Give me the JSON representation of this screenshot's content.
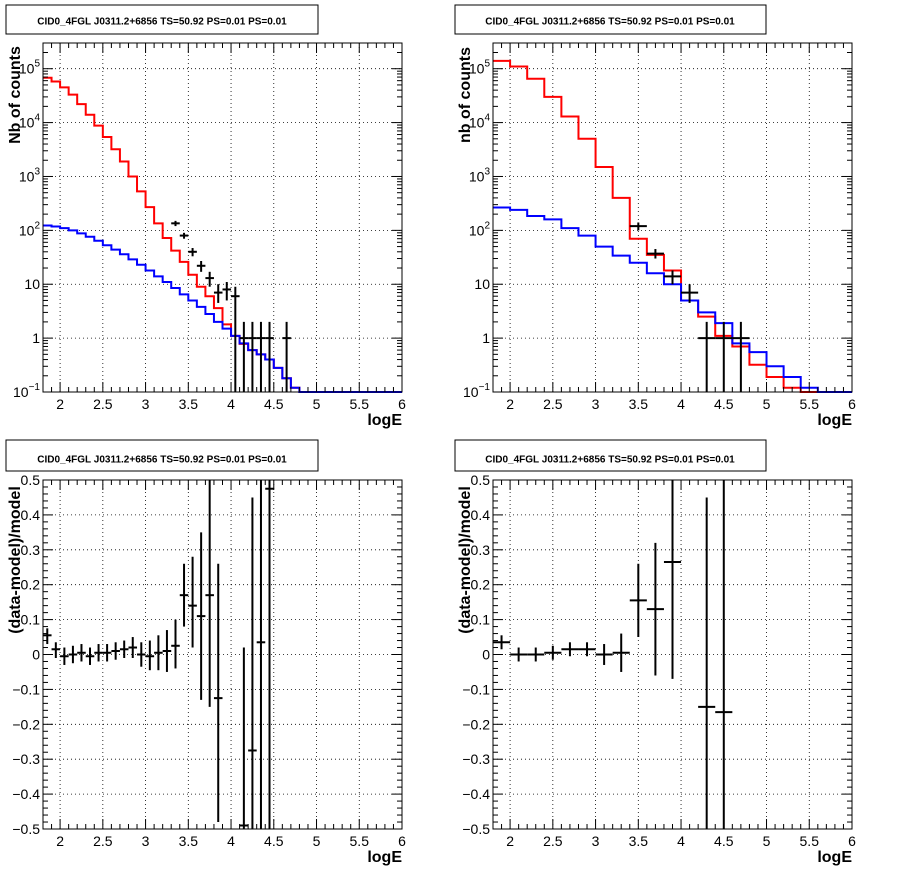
{
  "chart_data": [
    {
      "type": "histogram",
      "title": "CID0_4FGL J0311.2+6856 TS=50.92 PS=0.01 PS=0.01",
      "xlabel": "logE",
      "ylabel": "Nb of counts",
      "yscale": "log",
      "xlim": [
        1.8,
        6.0
      ],
      "ylim": [
        0.1,
        300000
      ],
      "grid": true,
      "x_ticks": [
        "2",
        "2.5",
        "3",
        "3.5",
        "4",
        "4.5",
        "5",
        "5.5",
        "6"
      ],
      "y_ticks": [
        [
          "0.1",
          "10^-1"
        ],
        [
          "1",
          "1"
        ],
        [
          "10",
          "10"
        ],
        [
          "100",
          "10^2"
        ],
        [
          "1000",
          "10^3"
        ],
        [
          "10000",
          "10^4"
        ],
        [
          "100000",
          "10^5"
        ]
      ],
      "series": [
        {
          "color": "#ff0000",
          "bin_edges": [
            1.8,
            1.9,
            2.0,
            2.1,
            2.2,
            2.3,
            2.4,
            2.5,
            2.6,
            2.7,
            2.8,
            2.9,
            3.0,
            3.1,
            3.2,
            3.3,
            3.4,
            3.5,
            3.6,
            3.7,
            3.8,
            3.9,
            4.0,
            4.1,
            4.2,
            4.3,
            4.4,
            4.5,
            4.6,
            4.7,
            4.8,
            4.9,
            5.0,
            5.1,
            5.2,
            5.3,
            5.4,
            5.5,
            5.6,
            5.7,
            5.8,
            5.9,
            6.0
          ],
          "values": [
            68000,
            58000,
            45000,
            33000,
            22000,
            14000,
            8800,
            5400,
            3200,
            1900,
            1000,
            530,
            270,
            135,
            72,
            42,
            26,
            15,
            9,
            6,
            3.6,
            1.8,
            1.1,
            0.78,
            0.6,
            0.5,
            0.4,
            0.28,
            0.18,
            0.12,
            0.1,
            0.1,
            0.1,
            0.1,
            0.1,
            0.1,
            0.1,
            0.1,
            0.1,
            0.1,
            0.1,
            0.1
          ]
        },
        {
          "color": "#0000ff",
          "bin_edges": [
            1.8,
            1.9,
            2.0,
            2.1,
            2.2,
            2.3,
            2.4,
            2.5,
            2.6,
            2.7,
            2.8,
            2.9,
            3.0,
            3.1,
            3.2,
            3.3,
            3.4,
            3.5,
            3.6,
            3.7,
            3.8,
            3.9,
            4.0,
            4.1,
            4.2,
            4.3,
            4.4,
            4.5,
            4.6,
            4.7,
            4.8,
            4.9,
            5.0,
            5.1,
            5.2,
            5.3,
            5.4,
            5.5,
            5.6,
            5.7,
            5.8,
            5.9,
            6.0
          ],
          "values": [
            123,
            118,
            110,
            100,
            88,
            76,
            64,
            53,
            44,
            36,
            29,
            23,
            18,
            14,
            11,
            8.5,
            6.5,
            5,
            3.8,
            2.8,
            2,
            1.5,
            1.1,
            0.8,
            0.6,
            0.5,
            0.4,
            0.28,
            0.18,
            0.12,
            0.1,
            0.1,
            0.1,
            0.1,
            0.1,
            0.1,
            0.1,
            0.1,
            0.1,
            0.1,
            0.1,
            0.1
          ]
        }
      ],
      "points": [
        {
          "x": 3.35,
          "xerr": 0.05,
          "y": 135,
          "ylo": 120,
          "yhi": 150
        },
        {
          "x": 3.45,
          "xerr": 0.05,
          "y": 80,
          "ylo": 70,
          "yhi": 90
        },
        {
          "x": 3.55,
          "xerr": 0.05,
          "y": 40,
          "ylo": 33,
          "yhi": 47
        },
        {
          "x": 3.65,
          "xerr": 0.05,
          "y": 22,
          "ylo": 17,
          "yhi": 27
        },
        {
          "x": 3.75,
          "xerr": 0.05,
          "y": 13,
          "ylo": 9,
          "yhi": 17
        },
        {
          "x": 3.85,
          "xerr": 0.05,
          "y": 7,
          "ylo": 4.5,
          "yhi": 10
        },
        {
          "x": 3.95,
          "xerr": 0.05,
          "y": 8,
          "ylo": 5,
          "yhi": 11
        },
        {
          "x": 4.05,
          "xerr": 0.05,
          "y": 6,
          "ylo": 0.1,
          "yhi": 9
        },
        {
          "x": 4.15,
          "xerr": 0.05,
          "y": 1,
          "ylo": 0.1,
          "yhi": 2
        },
        {
          "x": 4.25,
          "xerr": 0.05,
          "y": 1,
          "ylo": 0.1,
          "yhi": 2
        },
        {
          "x": 4.35,
          "xerr": 0.05,
          "y": 1,
          "ylo": 0.1,
          "yhi": 2
        },
        {
          "x": 4.45,
          "xerr": 0.05,
          "y": 1,
          "ylo": 0.1,
          "yhi": 2
        },
        {
          "x": 4.65,
          "xerr": 0.05,
          "y": 1,
          "ylo": 0.1,
          "yhi": 2
        }
      ]
    },
    {
      "type": "histogram",
      "title": "CID0_4FGL J0311.2+6856 TS=50.92 PS=0.01 PS=0.01",
      "xlabel": "logE",
      "ylabel": "nb of counts",
      "yscale": "log",
      "xlim": [
        1.8,
        6.0
      ],
      "ylim": [
        0.1,
        300000
      ],
      "grid": true,
      "x_ticks": [
        "2",
        "2.5",
        "3",
        "3.5",
        "4",
        "4.5",
        "5",
        "5.5",
        "6"
      ],
      "y_ticks": [
        [
          "0.1",
          "10^-1"
        ],
        [
          "1",
          "1"
        ],
        [
          "10",
          "10"
        ],
        [
          "100",
          "10^2"
        ],
        [
          "1000",
          "10^3"
        ],
        [
          "10000",
          "10^4"
        ],
        [
          "100000",
          "10^5"
        ]
      ],
      "series": [
        {
          "color": "#ff0000",
          "bin_edges": [
            1.8,
            2.0,
            2.2,
            2.4,
            2.6,
            2.8,
            3.0,
            3.2,
            3.4,
            3.6,
            3.8,
            4.0,
            4.2,
            4.4,
            4.6,
            4.8,
            5.0,
            5.2,
            5.4,
            5.6,
            5.8,
            6.0
          ],
          "values": [
            140000,
            110000,
            65000,
            30000,
            13000,
            5000,
            1500,
            400,
            70,
            35,
            18,
            5,
            2.5,
            1.1,
            0.7,
            0.32,
            0.19,
            0.12,
            0.1,
            0.1,
            0.1
          ]
        },
        {
          "color": "#0000ff",
          "bin_edges": [
            1.8,
            2.0,
            2.2,
            2.4,
            2.6,
            2.8,
            3.0,
            3.2,
            3.4,
            3.6,
            3.8,
            4.0,
            4.2,
            4.4,
            4.6,
            4.8,
            5.0,
            5.2,
            5.4,
            5.6,
            5.8,
            6.0
          ],
          "values": [
            265,
            240,
            185,
            160,
            110,
            80,
            50,
            34,
            25,
            16,
            10,
            5,
            3,
            1.9,
            0.8,
            0.55,
            0.3,
            0.19,
            0.12,
            0.1,
            0.1
          ]
        }
      ],
      "points": [
        {
          "x": 3.5,
          "xerr": 0.1,
          "y": 120,
          "ylo": 100,
          "yhi": 140
        },
        {
          "x": 3.7,
          "xerr": 0.1,
          "y": 37,
          "ylo": 30,
          "yhi": 45
        },
        {
          "x": 3.9,
          "xerr": 0.1,
          "y": 14,
          "ylo": 10,
          "yhi": 18
        },
        {
          "x": 4.1,
          "xerr": 0.1,
          "y": 7,
          "ylo": 4.5,
          "yhi": 10
        },
        {
          "x": 4.3,
          "xerr": 0.1,
          "y": 1,
          "ylo": 0.1,
          "yhi": 2
        },
        {
          "x": 4.5,
          "xerr": 0.1,
          "y": 1,
          "ylo": 0.1,
          "yhi": 2
        },
        {
          "x": 4.7,
          "xerr": 0.1,
          "y": 1,
          "ylo": 0.1,
          "yhi": 2
        }
      ]
    },
    {
      "type": "scatter",
      "title": "CID0_4FGL J0311.2+6856 TS=50.92 PS=0.01 PS=0.01",
      "xlabel": "logE",
      "ylabel": "(data-model)/model",
      "yscale": "linear",
      "xlim": [
        1.8,
        6.0
      ],
      "ylim": [
        -0.5,
        0.5
      ],
      "grid": true,
      "x_ticks": [
        "2",
        "2.5",
        "3",
        "3.5",
        "4",
        "4.5",
        "5",
        "5.5",
        "6"
      ],
      "y_ticks": [
        [
          "-0.5",
          "−0.5"
        ],
        [
          "-0.4",
          "−0.4"
        ],
        [
          "-0.3",
          "−0.3"
        ],
        [
          "-0.2",
          "−0.2"
        ],
        [
          "-0.1",
          "−0.1"
        ],
        [
          "0",
          "0"
        ],
        [
          "0.1",
          "0.1"
        ],
        [
          "0.2",
          "0.2"
        ],
        [
          "0.3",
          "0.3"
        ],
        [
          "0.4",
          "0.4"
        ],
        [
          "0.5",
          "0.5"
        ]
      ],
      "series": [],
      "points": [
        {
          "x": 1.85,
          "xerr": 0.05,
          "y": 0.055,
          "ylo": 0.03,
          "yhi": 0.075
        },
        {
          "x": 1.95,
          "xerr": 0.05,
          "y": 0.015,
          "ylo": -0.01,
          "yhi": 0.035
        },
        {
          "x": 2.05,
          "xerr": 0.05,
          "y": -0.005,
          "ylo": -0.03,
          "yhi": 0.02
        },
        {
          "x": 2.15,
          "xerr": 0.05,
          "y": 0.0,
          "ylo": -0.025,
          "yhi": 0.025
        },
        {
          "x": 2.25,
          "xerr": 0.05,
          "y": 0.005,
          "ylo": -0.02,
          "yhi": 0.03
        },
        {
          "x": 2.35,
          "xerr": 0.05,
          "y": -0.005,
          "ylo": -0.03,
          "yhi": 0.02
        },
        {
          "x": 2.45,
          "xerr": 0.05,
          "y": 0.005,
          "ylo": -0.02,
          "yhi": 0.03
        },
        {
          "x": 2.55,
          "xerr": 0.05,
          "y": 0.005,
          "ylo": -0.02,
          "yhi": 0.03
        },
        {
          "x": 2.65,
          "xerr": 0.05,
          "y": 0.01,
          "ylo": -0.015,
          "yhi": 0.035
        },
        {
          "x": 2.75,
          "xerr": 0.05,
          "y": 0.015,
          "ylo": -0.01,
          "yhi": 0.04
        },
        {
          "x": 2.85,
          "xerr": 0.05,
          "y": 0.02,
          "ylo": -0.01,
          "yhi": 0.05
        },
        {
          "x": 2.95,
          "xerr": 0.05,
          "y": 0.0,
          "ylo": -0.035,
          "yhi": 0.035
        },
        {
          "x": 3.05,
          "xerr": 0.05,
          "y": -0.005,
          "ylo": -0.045,
          "yhi": 0.04
        },
        {
          "x": 3.15,
          "xerr": 0.05,
          "y": 0.005,
          "ylo": -0.045,
          "yhi": 0.055
        },
        {
          "x": 3.25,
          "xerr": 0.05,
          "y": 0.01,
          "ylo": -0.05,
          "yhi": 0.07
        },
        {
          "x": 3.35,
          "xerr": 0.05,
          "y": 0.025,
          "ylo": -0.04,
          "yhi": 0.1
        },
        {
          "x": 3.45,
          "xerr": 0.05,
          "y": 0.17,
          "ylo": 0.08,
          "yhi": 0.26
        },
        {
          "x": 3.55,
          "xerr": 0.05,
          "y": 0.14,
          "ylo": 0.02,
          "yhi": 0.28
        },
        {
          "x": 3.65,
          "xerr": 0.05,
          "y": 0.11,
          "ylo": -0.13,
          "yhi": 0.35
        },
        {
          "x": 3.75,
          "xerr": 0.05,
          "y": 0.17,
          "ylo": -0.15,
          "yhi": 0.5
        },
        {
          "x": 3.85,
          "xerr": 0.05,
          "y": -0.125,
          "ylo": -0.48,
          "yhi": 0.26
        },
        {
          "x": 4.15,
          "xerr": 0.05,
          "y": -0.49,
          "ylo": -0.5,
          "yhi": 0.02
        },
        {
          "x": 4.25,
          "xerr": 0.05,
          "y": -0.275,
          "ylo": -0.5,
          "yhi": 0.45
        },
        {
          "x": 4.35,
          "xerr": 0.05,
          "y": 0.035,
          "ylo": -0.5,
          "yhi": 0.5
        },
        {
          "x": 4.45,
          "xerr": 0.05,
          "y": 0.475,
          "ylo": -0.5,
          "yhi": 0.5
        }
      ]
    },
    {
      "type": "scatter",
      "title": "CID0_4FGL J0311.2+6856 TS=50.92 PS=0.01 PS=0.01",
      "xlabel": "logE",
      "ylabel": "(data-model)/model",
      "yscale": "linear",
      "xlim": [
        1.8,
        6.0
      ],
      "ylim": [
        -0.5,
        0.5
      ],
      "grid": true,
      "x_ticks": [
        "2",
        "2.5",
        "3",
        "3.5",
        "4",
        "4.5",
        "5",
        "5.5",
        "6"
      ],
      "y_ticks": [
        [
          "-0.5",
          "−0.5"
        ],
        [
          "-0.4",
          "−0.4"
        ],
        [
          "-0.3",
          "−0.3"
        ],
        [
          "-0.2",
          "−0.2"
        ],
        [
          "-0.1",
          "−0.1"
        ],
        [
          "0",
          "0"
        ],
        [
          "0.1",
          "0.1"
        ],
        [
          "0.2",
          "0.2"
        ],
        [
          "0.3",
          "0.3"
        ],
        [
          "0.4",
          "0.4"
        ],
        [
          "0.5",
          "0.5"
        ]
      ],
      "series": [],
      "points": [
        {
          "x": 1.9,
          "xerr": 0.1,
          "y": 0.035,
          "ylo": 0.015,
          "yhi": 0.055
        },
        {
          "x": 2.1,
          "xerr": 0.1,
          "y": 0.0,
          "ylo": -0.02,
          "yhi": 0.02
        },
        {
          "x": 2.3,
          "xerr": 0.1,
          "y": 0.0,
          "ylo": -0.02,
          "yhi": 0.02
        },
        {
          "x": 2.5,
          "xerr": 0.1,
          "y": 0.005,
          "ylo": -0.015,
          "yhi": 0.025
        },
        {
          "x": 2.7,
          "xerr": 0.1,
          "y": 0.015,
          "ylo": -0.005,
          "yhi": 0.035
        },
        {
          "x": 2.9,
          "xerr": 0.1,
          "y": 0.015,
          "ylo": -0.005,
          "yhi": 0.035
        },
        {
          "x": 3.1,
          "xerr": 0.1,
          "y": 0.0,
          "ylo": -0.03,
          "yhi": 0.03
        },
        {
          "x": 3.3,
          "xerr": 0.1,
          "y": 0.005,
          "ylo": -0.05,
          "yhi": 0.06
        },
        {
          "x": 3.5,
          "xerr": 0.1,
          "y": 0.155,
          "ylo": 0.05,
          "yhi": 0.26
        },
        {
          "x": 3.7,
          "xerr": 0.1,
          "y": 0.13,
          "ylo": -0.06,
          "yhi": 0.32
        },
        {
          "x": 3.9,
          "xerr": 0.1,
          "y": 0.265,
          "ylo": -0.07,
          "yhi": 0.5
        },
        {
          "x": 4.3,
          "xerr": 0.1,
          "y": -0.15,
          "ylo": -0.5,
          "yhi": 0.45
        },
        {
          "x": 4.5,
          "xerr": 0.1,
          "y": -0.165,
          "ylo": -0.5,
          "yhi": 0.5
        }
      ]
    }
  ]
}
